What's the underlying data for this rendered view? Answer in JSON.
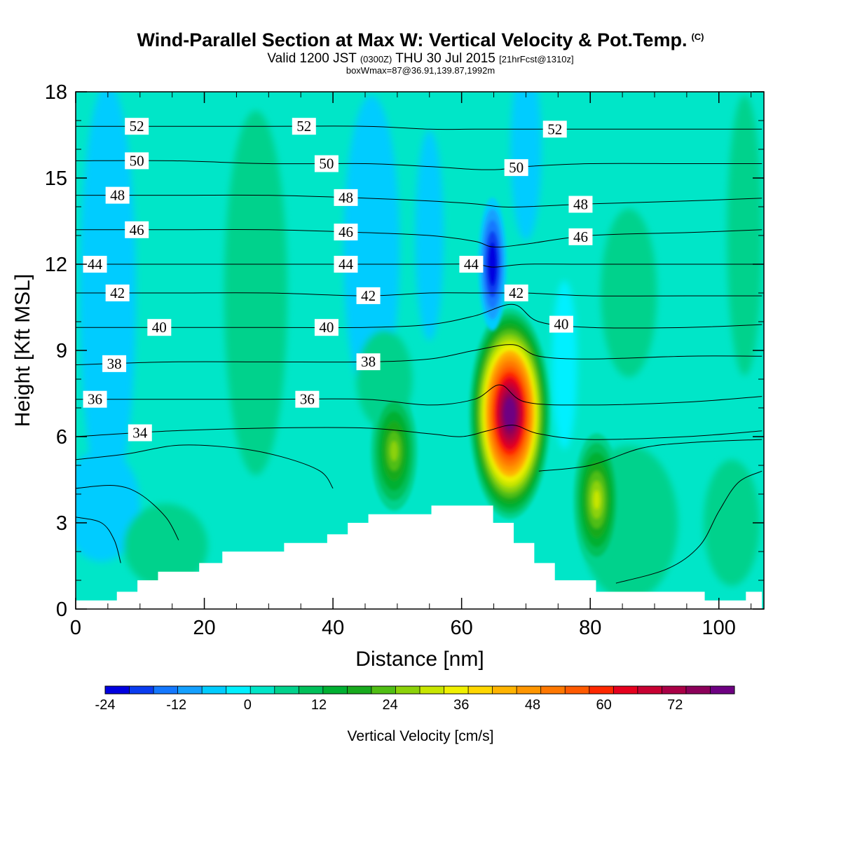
{
  "header": {
    "title": "Wind-Parallel Section at Max W: Vertical Velocity & Pot.Temp.",
    "copyright": "(C)",
    "valid_prefix": "Valid 1200 JST",
    "valid_utc": "(0300Z)",
    "valid_date": "THU 30 Jul 2015",
    "forecast": "[21hrFcst@1310z]",
    "box_info": "boxWmax=87@36.91,139.87,1992m"
  },
  "chart_data": {
    "type": "heatmap",
    "title": "Wind-Parallel Section at Max W: Vertical Velocity & Pot.Temp.",
    "xlabel": "Distance [nm]",
    "ylabel": "Height [Kft MSL]",
    "xlim": [
      0,
      107
    ],
    "ylim": [
      0,
      18
    ],
    "x_ticks": [
      "0",
      "20",
      "40",
      "60",
      "80",
      "100"
    ],
    "y_ticks": [
      "0",
      "3",
      "6",
      "9",
      "12",
      "15",
      "18"
    ],
    "colorbar": {
      "label": "Vertical Velocity [cm/s]",
      "min": -24,
      "max": 78,
      "step": 4,
      "tick_labels": [
        "-24",
        "-12",
        "0",
        "12",
        "24",
        "36",
        "48",
        "60",
        "72"
      ],
      "colors": [
        "#0000e0",
        "#0a3cf0",
        "#1478ff",
        "#14a0ff",
        "#00ccff",
        "#00f0ff",
        "#00e6c8",
        "#00d28c",
        "#00c05a",
        "#00b032",
        "#18aa1e",
        "#50be14",
        "#8cd20a",
        "#c8e600",
        "#f0f000",
        "#ffd700",
        "#ffb400",
        "#ff9600",
        "#ff7800",
        "#ff5a00",
        "#ff2800",
        "#e6001e",
        "#c80032",
        "#aa0046",
        "#8c005a",
        "#6e0082"
      ]
    },
    "terrain_profile": [
      [
        0,
        0.3
      ],
      [
        6.4,
        0.3
      ],
      [
        6.4,
        0.6
      ],
      [
        9.6,
        0.6
      ],
      [
        9.6,
        1.0
      ],
      [
        12.8,
        1.0
      ],
      [
        12.8,
        1.3
      ],
      [
        19.2,
        1.3
      ],
      [
        19.2,
        1.6
      ],
      [
        22.8,
        1.6
      ],
      [
        22.8,
        2.0
      ],
      [
        32.4,
        2.0
      ],
      [
        32.4,
        2.3
      ],
      [
        39.1,
        2.3
      ],
      [
        39.1,
        2.6
      ],
      [
        42.3,
        2.6
      ],
      [
        42.3,
        3.0
      ],
      [
        45.5,
        3.0
      ],
      [
        45.5,
        3.3
      ],
      [
        55.3,
        3.3
      ],
      [
        55.3,
        3.6
      ],
      [
        64.9,
        3.6
      ],
      [
        64.9,
        3.0
      ],
      [
        68.1,
        3.0
      ],
      [
        68.1,
        2.3
      ],
      [
        71.3,
        2.3
      ],
      [
        71.3,
        1.6
      ],
      [
        74.5,
        1.6
      ],
      [
        74.5,
        1.0
      ],
      [
        80.9,
        1.0
      ],
      [
        80.9,
        0.6
      ],
      [
        97.8,
        0.6
      ],
      [
        97.8,
        0.3
      ],
      [
        104.2,
        0.3
      ],
      [
        104.2,
        0.6
      ],
      [
        106.7,
        0.6
      ]
    ],
    "updraft_cores": [
      {
        "x": 67.5,
        "y": 6.8,
        "w_max": 87
      },
      {
        "x": 49.5,
        "y": 5.5,
        "w_max": 26
      },
      {
        "x": 81.0,
        "y": 3.8,
        "w_max": 30
      }
    ],
    "downdraft_cores": [
      {
        "x": 64.8,
        "y": 12.0,
        "w_min": -24
      }
    ],
    "theta_contours": [
      {
        "label": "34",
        "points": [
          [
            0,
            6.0
          ],
          [
            15,
            6.2
          ],
          [
            30,
            6.3
          ],
          [
            45,
            6.3
          ],
          [
            55,
            6.1
          ],
          [
            60,
            6.0
          ],
          [
            64,
            6.2
          ],
          [
            68,
            6.4
          ],
          [
            72,
            6.1
          ],
          [
            80,
            5.9
          ],
          [
            95,
            6.0
          ],
          [
            106.7,
            6.2
          ]
        ]
      },
      {
        "label": "36",
        "points": [
          [
            0,
            7.3
          ],
          [
            15,
            7.3
          ],
          [
            30,
            7.3
          ],
          [
            45,
            7.3
          ],
          [
            55,
            7.1
          ],
          [
            62,
            7.3
          ],
          [
            66,
            7.8
          ],
          [
            70,
            7.2
          ],
          [
            80,
            7.1
          ],
          [
            95,
            7.2
          ],
          [
            106.7,
            7.4
          ]
        ]
      },
      {
        "label": "38",
        "points": [
          [
            0,
            8.5
          ],
          [
            15,
            8.6
          ],
          [
            30,
            8.6
          ],
          [
            45,
            8.6
          ],
          [
            55,
            8.7
          ],
          [
            62,
            9.0
          ],
          [
            68,
            9.2
          ],
          [
            72,
            8.8
          ],
          [
            80,
            8.7
          ],
          [
            95,
            8.8
          ],
          [
            106.7,
            8.8
          ]
        ]
      },
      {
        "label": "40",
        "points": [
          [
            0,
            9.8
          ],
          [
            15,
            9.8
          ],
          [
            30,
            9.8
          ],
          [
            45,
            9.8
          ],
          [
            55,
            9.9
          ],
          [
            62,
            10.2
          ],
          [
            68,
            10.6
          ],
          [
            72,
            10.0
          ],
          [
            80,
            9.8
          ],
          [
            95,
            9.8
          ],
          [
            106.7,
            9.9
          ]
        ]
      },
      {
        "label": "42",
        "points": [
          [
            0,
            11.0
          ],
          [
            15,
            11.0
          ],
          [
            30,
            11.0
          ],
          [
            45,
            10.9
          ],
          [
            55,
            11.0
          ],
          [
            62,
            11.0
          ],
          [
            66,
            11.0
          ],
          [
            70,
            11.0
          ],
          [
            80,
            10.9
          ],
          [
            95,
            10.9
          ],
          [
            106.7,
            10.9
          ]
        ]
      },
      {
        "label": "44",
        "points": [
          [
            0,
            12.0
          ],
          [
            15,
            12.0
          ],
          [
            30,
            12.0
          ],
          [
            45,
            12.0
          ],
          [
            55,
            12.0
          ],
          [
            62,
            12.0
          ],
          [
            65,
            11.9
          ],
          [
            70,
            12.0
          ],
          [
            80,
            12.0
          ],
          [
            95,
            12.0
          ],
          [
            106.7,
            12.0
          ]
        ]
      },
      {
        "label": "46",
        "points": [
          [
            0,
            13.2
          ],
          [
            15,
            13.2
          ],
          [
            30,
            13.2
          ],
          [
            45,
            13.1
          ],
          [
            55,
            13.0
          ],
          [
            62,
            12.8
          ],
          [
            65,
            12.6
          ],
          [
            70,
            12.7
          ],
          [
            80,
            13.0
          ],
          [
            95,
            13.1
          ],
          [
            106.7,
            13.2
          ]
        ]
      },
      {
        "label": "48",
        "points": [
          [
            0,
            14.4
          ],
          [
            15,
            14.4
          ],
          [
            30,
            14.4
          ],
          [
            45,
            14.3
          ],
          [
            55,
            14.2
          ],
          [
            62,
            14.1
          ],
          [
            66,
            14.0
          ],
          [
            70,
            14.0
          ],
          [
            80,
            14.1
          ],
          [
            95,
            14.2
          ],
          [
            106.7,
            14.3
          ]
        ]
      },
      {
        "label": "50",
        "points": [
          [
            0,
            15.6
          ],
          [
            15,
            15.6
          ],
          [
            30,
            15.5
          ],
          [
            45,
            15.5
          ],
          [
            55,
            15.4
          ],
          [
            62,
            15.3
          ],
          [
            66,
            15.3
          ],
          [
            70,
            15.4
          ],
          [
            80,
            15.5
          ],
          [
            95,
            15.5
          ],
          [
            106.7,
            15.5
          ]
        ]
      },
      {
        "label": "52",
        "points": [
          [
            0,
            16.8
          ],
          [
            15,
            16.8
          ],
          [
            30,
            16.8
          ],
          [
            45,
            16.8
          ],
          [
            55,
            16.7
          ],
          [
            62,
            16.7
          ],
          [
            70,
            16.7
          ],
          [
            80,
            16.7
          ],
          [
            95,
            16.7
          ],
          [
            106.7,
            16.7
          ]
        ]
      }
    ]
  }
}
